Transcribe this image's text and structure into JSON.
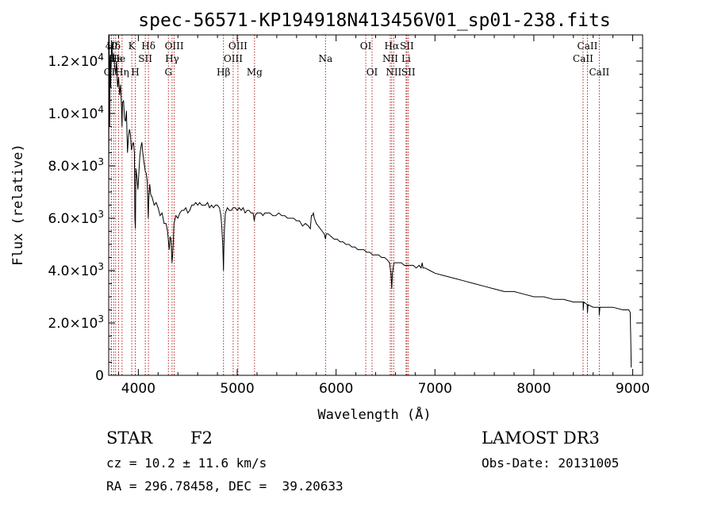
{
  "chart_data": {
    "type": "line",
    "title": "spec-56571-KP194918N413456V01_sp01-238.fits",
    "xlabel": "Wavelength (Å)",
    "ylabel": "Flux (relative)",
    "xlim": [
      3700,
      9100
    ],
    "ylim": [
      0,
      13000
    ],
    "xticks": [
      4000,
      5000,
      6000,
      7000,
      8000,
      9000
    ],
    "xtick_labels": [
      "4000",
      "5000",
      "6000",
      "7000",
      "8000",
      "9000"
    ],
    "yticks": [
      0,
      2000,
      4000,
      6000,
      8000,
      10000,
      12000
    ],
    "ytick_labels": [
      {
        "mant": "0",
        "exp": ""
      },
      {
        "mant": "2.0×10",
        "exp": "3"
      },
      {
        "mant": "4.0×10",
        "exp": "3"
      },
      {
        "mant": "6.0×10",
        "exp": "3"
      },
      {
        "mant": "8.0×10",
        "exp": "3"
      },
      {
        "mant": "1.0×10",
        "exp": "4"
      },
      {
        "mant": "1.2×10",
        "exp": "4"
      }
    ],
    "spectrum": [
      [
        3700,
        7000
      ],
      [
        3705,
        13000
      ],
      [
        3710,
        9500
      ],
      [
        3715,
        12200
      ],
      [
        3720,
        11000
      ],
      [
        3730,
        12800
      ],
      [
        3740,
        12000
      ],
      [
        3750,
        12300
      ],
      [
        3760,
        11800
      ],
      [
        3770,
        11500
      ],
      [
        3780,
        12000
      ],
      [
        3790,
        11000
      ],
      [
        3800,
        11400
      ],
      [
        3810,
        10700
      ],
      [
        3820,
        11100
      ],
      [
        3830,
        10200
      ],
      [
        3835,
        9500
      ],
      [
        3840,
        10400
      ],
      [
        3850,
        10500
      ],
      [
        3860,
        9800
      ],
      [
        3870,
        9700
      ],
      [
        3880,
        10100
      ],
      [
        3890,
        8500
      ],
      [
        3900,
        9100
      ],
      [
        3910,
        9400
      ],
      [
        3920,
        9200
      ],
      [
        3930,
        8600
      ],
      [
        3940,
        8800
      ],
      [
        3950,
        8900
      ],
      [
        3960,
        8500
      ],
      [
        3965,
        6000
      ],
      [
        3970,
        5600
      ],
      [
        3975,
        7900
      ],
      [
        3985,
        7600
      ],
      [
        3995,
        7100
      ],
      [
        4005,
        7700
      ],
      [
        4015,
        8400
      ],
      [
        4025,
        8700
      ],
      [
        4035,
        8900
      ],
      [
        4045,
        8500
      ],
      [
        4055,
        8200
      ],
      [
        4070,
        7800
      ],
      [
        4080,
        7700
      ],
      [
        4090,
        7400
      ],
      [
        4100,
        6000
      ],
      [
        4105,
        6700
      ],
      [
        4115,
        7300
      ],
      [
        4125,
        6900
      ],
      [
        4140,
        6800
      ],
      [
        4160,
        6500
      ],
      [
        4180,
        6600
      ],
      [
        4200,
        6400
      ],
      [
        4220,
        6100
      ],
      [
        4240,
        6200
      ],
      [
        4260,
        5800
      ],
      [
        4280,
        5800
      ],
      [
        4295,
        5500
      ],
      [
        4305,
        5100
      ],
      [
        4312,
        4800
      ],
      [
        4320,
        5300
      ],
      [
        4330,
        5200
      ],
      [
        4340,
        4300
      ],
      [
        4345,
        4500
      ],
      [
        4352,
        5000
      ],
      [
        4360,
        5800
      ],
      [
        4380,
        6100
      ],
      [
        4400,
        6000
      ],
      [
        4420,
        6200
      ],
      [
        4440,
        6300
      ],
      [
        4460,
        6300
      ],
      [
        4480,
        6400
      ],
      [
        4500,
        6200
      ],
      [
        4520,
        6300
      ],
      [
        4540,
        6500
      ],
      [
        4560,
        6500
      ],
      [
        4580,
        6600
      ],
      [
        4600,
        6500
      ],
      [
        4620,
        6600
      ],
      [
        4640,
        6500
      ],
      [
        4660,
        6500
      ],
      [
        4680,
        6500
      ],
      [
        4700,
        6600
      ],
      [
        4720,
        6400
      ],
      [
        4740,
        6500
      ],
      [
        4760,
        6400
      ],
      [
        4780,
        6500
      ],
      [
        4800,
        6500
      ],
      [
        4820,
        6400
      ],
      [
        4835,
        6100
      ],
      [
        4845,
        5600
      ],
      [
        4855,
        4900
      ],
      [
        4861,
        4000
      ],
      [
        4866,
        5000
      ],
      [
        4872,
        5700
      ],
      [
        4880,
        6200
      ],
      [
        4900,
        6400
      ],
      [
        4920,
        6300
      ],
      [
        4940,
        6300
      ],
      [
        4960,
        6400
      ],
      [
        4980,
        6400
      ],
      [
        5000,
        6300
      ],
      [
        5020,
        6400
      ],
      [
        5040,
        6300
      ],
      [
        5060,
        6400
      ],
      [
        5080,
        6200
      ],
      [
        5100,
        6300
      ],
      [
        5120,
        6300
      ],
      [
        5140,
        6200
      ],
      [
        5160,
        6200
      ],
      [
        5172,
        5900
      ],
      [
        5180,
        6100
      ],
      [
        5200,
        6200
      ],
      [
        5220,
        6200
      ],
      [
        5240,
        6200
      ],
      [
        5260,
        6100
      ],
      [
        5280,
        6200
      ],
      [
        5300,
        6200
      ],
      [
        5330,
        6200
      ],
      [
        5360,
        6100
      ],
      [
        5390,
        6100
      ],
      [
        5420,
        6200
      ],
      [
        5450,
        6100
      ],
      [
        5480,
        6100
      ],
      [
        5510,
        6000
      ],
      [
        5540,
        6000
      ],
      [
        5570,
        6000
      ],
      [
        5600,
        5900
      ],
      [
        5630,
        5900
      ],
      [
        5660,
        5700
      ],
      [
        5690,
        5800
      ],
      [
        5720,
        5700
      ],
      [
        5740,
        5600
      ],
      [
        5750,
        6100
      ],
      [
        5760,
        6100
      ],
      [
        5770,
        6200
      ],
      [
        5780,
        6000
      ],
      [
        5800,
        5800
      ],
      [
        5820,
        5700
      ],
      [
        5840,
        5600
      ],
      [
        5860,
        5500
      ],
      [
        5880,
        5400
      ],
      [
        5893,
        5200
      ],
      [
        5900,
        5400
      ],
      [
        5920,
        5400
      ],
      [
        5950,
        5300
      ],
      [
        5980,
        5200
      ],
      [
        6010,
        5200
      ],
      [
        6040,
        5100
      ],
      [
        6070,
        5100
      ],
      [
        6100,
        5000
      ],
      [
        6130,
        5000
      ],
      [
        6160,
        4900
      ],
      [
        6190,
        4900
      ],
      [
        6220,
        4800
      ],
      [
        6250,
        4800
      ],
      [
        6280,
        4800
      ],
      [
        6310,
        4700
      ],
      [
        6340,
        4700
      ],
      [
        6370,
        4600
      ],
      [
        6400,
        4600
      ],
      [
        6430,
        4600
      ],
      [
        6460,
        4500
      ],
      [
        6490,
        4500
      ],
      [
        6520,
        4400
      ],
      [
        6540,
        4300
      ],
      [
        6555,
        3900
      ],
      [
        6563,
        3300
      ],
      [
        6570,
        3900
      ],
      [
        6585,
        4300
      ],
      [
        6600,
        4300
      ],
      [
        6630,
        4300
      ],
      [
        6660,
        4300
      ],
      [
        6690,
        4200
      ],
      [
        6720,
        4200
      ],
      [
        6750,
        4200
      ],
      [
        6780,
        4200
      ],
      [
        6810,
        4100
      ],
      [
        6840,
        4200
      ],
      [
        6860,
        4100
      ],
      [
        6870,
        4300
      ],
      [
        6880,
        4100
      ],
      [
        6900,
        4100
      ],
      [
        6950,
        4000
      ],
      [
        7000,
        3900
      ],
      [
        7100,
        3800
      ],
      [
        7200,
        3700
      ],
      [
        7300,
        3600
      ],
      [
        7400,
        3500
      ],
      [
        7500,
        3400
      ],
      [
        7600,
        3300
      ],
      [
        7700,
        3200
      ],
      [
        7800,
        3200
      ],
      [
        7900,
        3100
      ],
      [
        8000,
        3000
      ],
      [
        8100,
        3000
      ],
      [
        8200,
        2900
      ],
      [
        8300,
        2900
      ],
      [
        8400,
        2800
      ],
      [
        8498,
        2800
      ],
      [
        8500,
        2500
      ],
      [
        8505,
        2800
      ],
      [
        8540,
        2700
      ],
      [
        8542,
        2400
      ],
      [
        8548,
        2700
      ],
      [
        8600,
        2600
      ],
      [
        8660,
        2600
      ],
      [
        8662,
        2300
      ],
      [
        8668,
        2600
      ],
      [
        8700,
        2600
      ],
      [
        8800,
        2600
      ],
      [
        8900,
        2500
      ],
      [
        8960,
        2500
      ],
      [
        8975,
        2400
      ],
      [
        8980,
        1500
      ],
      [
        8985,
        300
      ]
    ],
    "spectral_lines": [
      {
        "name": "Hδ",
        "wl": 3750,
        "row": 1
      },
      {
        "name": "40",
        "wl": 3727,
        "row": 1
      },
      {
        "name": "OII",
        "wl": 3727,
        "row": 3
      },
      {
        "name": "Hε",
        "wl": 3770,
        "row": 2
      },
      {
        "name": "He",
        "wl": 3800,
        "row": 2
      },
      {
        "name": "Hη",
        "wl": 3835,
        "row": 3
      },
      {
        "name": "K",
        "wl": 3934,
        "row": 1
      },
      {
        "name": "H",
        "wl": 3969,
        "row": 3
      },
      {
        "name": "SII",
        "wl": 4070,
        "row": 2
      },
      {
        "name": "Hδ",
        "wl": 4102,
        "row": 1
      },
      {
        "name": "OIII",
        "wl": 4363,
        "row": 1
      },
      {
        "name": "Hγ",
        "wl": 4341,
        "row": 2
      },
      {
        "name": "G",
        "wl": 4304,
        "row": 3
      },
      {
        "name": "Hβ",
        "wl": 4861,
        "row": 3
      },
      {
        "name": "OIII",
        "wl": 5007,
        "row": 1
      },
      {
        "name": "OIII",
        "wl": 4959,
        "row": 2
      },
      {
        "name": "Mg",
        "wl": 5175,
        "row": 3
      },
      {
        "name": "Na",
        "wl": 5893,
        "row": 2
      },
      {
        "name": "OI",
        "wl": 6300,
        "row": 1
      },
      {
        "name": "OI",
        "wl": 6364,
        "row": 3
      },
      {
        "name": "Hα",
        "wl": 6563,
        "row": 1
      },
      {
        "name": "NII",
        "wl": 6548,
        "row": 2
      },
      {
        "name": "NII",
        "wl": 6583,
        "row": 3
      },
      {
        "name": "SII",
        "wl": 6716,
        "row": 1
      },
      {
        "name": "Li",
        "wl": 6708,
        "row": 2
      },
      {
        "name": "SII",
        "wl": 6731,
        "row": 3
      },
      {
        "name": "CaII",
        "wl": 8542,
        "row": 1
      },
      {
        "name": "CaII",
        "wl": 8498,
        "row": 2
      },
      {
        "name": "CaII",
        "wl": 8662,
        "row": 3
      }
    ],
    "line_colors": {
      "spectrum": "#000000",
      "marker": "#b22222"
    }
  },
  "info": {
    "class_label": "STAR",
    "subclass": "F2",
    "survey": "LAMOST DR3",
    "cz": "cz = 10.2 ± 11.6 km/s",
    "obs_date": "Obs-Date: 20131005",
    "coords": "RA = 296.78458, DEC =  39.20633"
  }
}
